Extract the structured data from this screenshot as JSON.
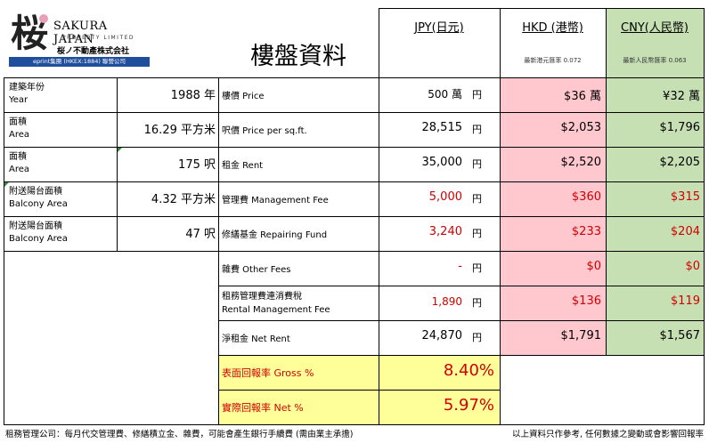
{
  "logo": {
    "kanji": "桜",
    "brand": "SAKURA JAPAN",
    "sub": "PROPERTY LIMITED",
    "jp_name": "桜ノ不動產株式会社",
    "parent": "eprint集團 (HKEX:1884) 聯營公司"
  },
  "title": "樓盤資料",
  "columns": {
    "jpy": "JPY(日元)",
    "hkd": "HKD (港幣)",
    "cny": "CNY(人民幣)",
    "hkd_rate": "最新港元匯率 0.072",
    "cny_rate": "最新人民幣匯率 0.063"
  },
  "left_rows": [
    {
      "label_zh": "建築年份",
      "label_en": "Year",
      "value": "1988 年"
    },
    {
      "label_zh": "面積",
      "label_en": "Area",
      "value": "16.29 平方米"
    },
    {
      "label_zh": "面積",
      "label_en": "Area",
      "value": "175 呎"
    },
    {
      "label_zh": "附送陽台面積",
      "label_en": "Balcony Area",
      "value": "4.32 平方米"
    },
    {
      "label_zh": "附送陽台面積",
      "label_en": "Balcony Area",
      "value": "47 呎"
    }
  ],
  "price_rows": [
    {
      "label": "樓價 Price",
      "jpy": "500 萬",
      "unit": "円",
      "hkd": "$36 萬",
      "cny": "¥32 萬"
    },
    {
      "label": "呎價 Price per sq.ft.",
      "jpy": "28,515",
      "unit": "円",
      "hkd": "$2,053",
      "cny": "$1,796"
    },
    {
      "label": "租金 Rent",
      "jpy": "35,000",
      "unit": "円",
      "hkd": "$2,520",
      "cny": "$2,205"
    },
    {
      "label": "管理費 Management Fee",
      "jpy": "5,000",
      "unit": "円",
      "hkd": "$360",
      "cny": "$315"
    },
    {
      "label": "修繕基金 Repairing Fund",
      "jpy": "3,240",
      "unit": "円",
      "hkd": "$233",
      "cny": "$204"
    },
    {
      "label": "雜費 Other Fees",
      "jpy": "-",
      "unit": "円",
      "hkd": "$0",
      "cny": "$0"
    },
    {
      "label": "租務管理費連消費稅",
      "label2": "Rental Management Fee",
      "jpy": "1,890",
      "unit": "円",
      "hkd": "$136",
      "cny": "$119"
    },
    {
      "label": "淨租金 Net Rent",
      "jpy": "24,870",
      "unit": "円",
      "hkd": "$1,791",
      "cny": "$1,567"
    }
  ],
  "returns": [
    {
      "label": "表面回報率 Gross %",
      "value": "8.40%"
    },
    {
      "label": "實際回報率 Net %",
      "value": "5.97%"
    }
  ],
  "footer": {
    "left": "租務管理公司：每月代交管理費、修繕積立金、雜費，可能會產生銀行手續費 (需由業主承擔)",
    "right": "以上資料只作參考, 任何數據之變動或會影響回報率"
  }
}
